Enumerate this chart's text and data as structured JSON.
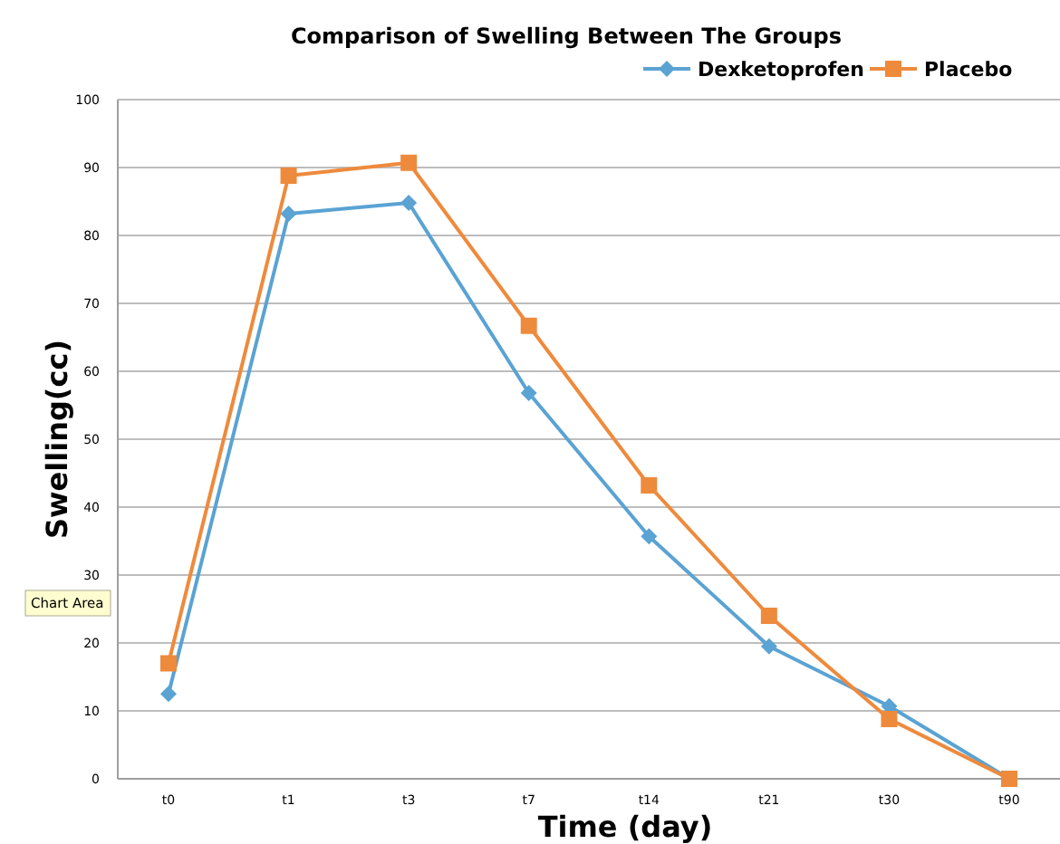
{
  "chart_data": {
    "type": "line",
    "title": "Comparison of Swelling Between The Groups",
    "xlabel": "Time (day)",
    "ylabel": "Swelling(cc)",
    "categories": [
      "t0",
      "t1",
      "t3",
      "t7",
      "t14",
      "t21",
      "t30",
      "t90"
    ],
    "series": [
      {
        "name": "Dexketoprofen",
        "color": "#5aa3d3",
        "marker": "diamond",
        "values": [
          12.5,
          83.2,
          84.8,
          56.8,
          35.7,
          19.5,
          10.7,
          0
        ]
      },
      {
        "name": "Placebo",
        "color": "#ee8a3c",
        "marker": "square",
        "values": [
          17,
          88.8,
          90.7,
          66.7,
          43.2,
          24,
          8.8,
          0
        ]
      }
    ],
    "ylim": [
      0,
      100
    ],
    "yticks": [
      0,
      10,
      20,
      30,
      40,
      50,
      60,
      70,
      80,
      90,
      100
    ],
    "grid": "y",
    "legend": "top right",
    "annotations": [
      "Chart Area"
    ]
  }
}
